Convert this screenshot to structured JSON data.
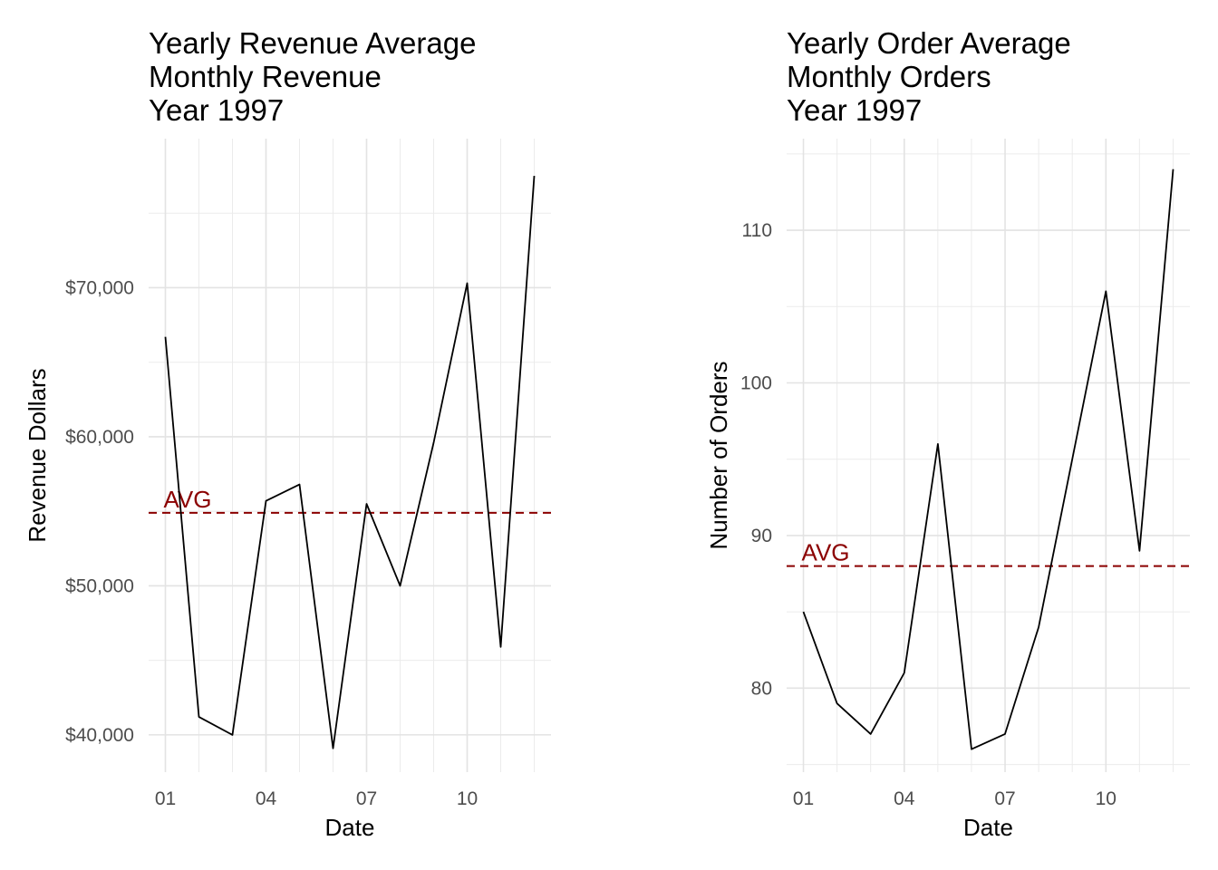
{
  "chart_data": [
    {
      "type": "line",
      "title": [
        "Yearly Revenue Average",
        "Monthly Revenue",
        "Year 1997"
      ],
      "xlabel": "Date",
      "ylabel": "Revenue Dollars",
      "x": [
        1,
        2,
        3,
        4,
        5,
        6,
        7,
        8,
        9,
        10,
        11,
        12
      ],
      "x_ticks": [
        1,
        4,
        7,
        10
      ],
      "x_tick_labels": [
        "01",
        "04",
        "07",
        "10"
      ],
      "xlim": [
        0.5,
        12.5
      ],
      "values": [
        66700,
        41200,
        40000,
        55700,
        56800,
        39100,
        55500,
        50000,
        59600,
        70300,
        45900,
        77500
      ],
      "y_ticks": [
        40000,
        50000,
        60000,
        70000
      ],
      "y_tick_labels": [
        "$40,000",
        "$50,000",
        "$60,000",
        "$70,000"
      ],
      "ylim": [
        37500,
        80000
      ],
      "avg_value": 54900,
      "avg_label": "AVG",
      "line_color": "#000000",
      "avg_color": "#8b0000",
      "grid": true
    },
    {
      "type": "line",
      "title": [
        "Yearly Order Average",
        "Monthly Orders",
        "Year 1997"
      ],
      "xlabel": "Date",
      "ylabel": "Number of Orders",
      "x": [
        1,
        2,
        3,
        4,
        5,
        6,
        7,
        8,
        9,
        10,
        11,
        12
      ],
      "x_ticks": [
        1,
        4,
        7,
        10
      ],
      "x_tick_labels": [
        "01",
        "04",
        "07",
        "10"
      ],
      "xlim": [
        0.5,
        12.5
      ],
      "values": [
        85,
        79,
        77,
        81,
        96,
        76,
        77,
        84,
        95,
        106,
        89,
        114
      ],
      "y_ticks": [
        80,
        90,
        100,
        110
      ],
      "y_tick_labels": [
        "80",
        "90",
        "100",
        "110"
      ],
      "ylim": [
        74.5,
        116
      ],
      "avg_value": 88,
      "avg_label": "AVG",
      "line_color": "#000000",
      "avg_color": "#8b0000",
      "grid": true
    }
  ]
}
